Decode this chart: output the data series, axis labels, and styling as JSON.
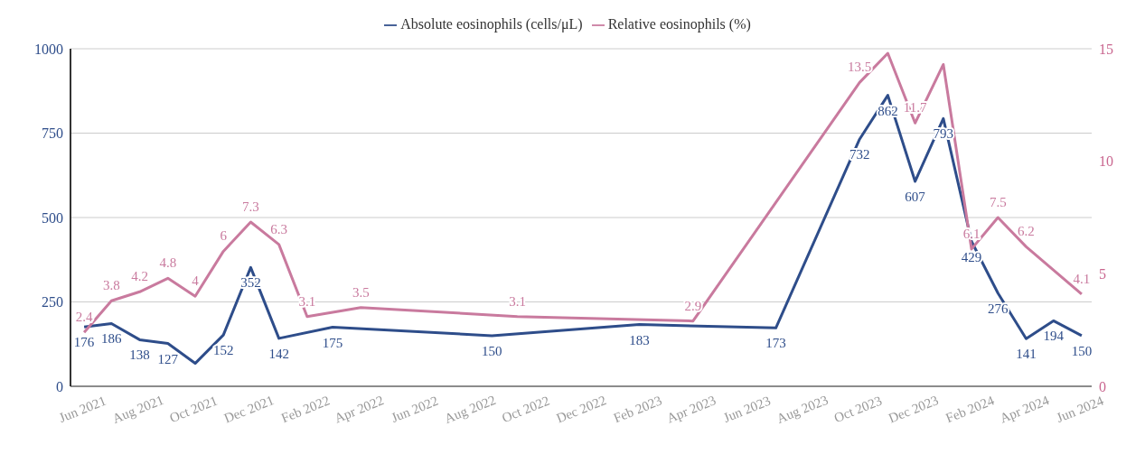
{
  "chart_data": {
    "type": "line",
    "xlim": [
      "2021-05-17",
      "2024-06-12"
    ],
    "xticks": [
      {
        "value": "2021-06",
        "label": "Jun 2021"
      },
      {
        "value": "2021-08",
        "label": "Aug 2021"
      },
      {
        "value": "2021-10",
        "label": "Oct 2021"
      },
      {
        "value": "2021-12",
        "label": "Dec 2021"
      },
      {
        "value": "2022-02",
        "label": "Feb 2022"
      },
      {
        "value": "2022-04",
        "label": "Apr 2022"
      },
      {
        "value": "2022-06",
        "label": "Jun 2022"
      },
      {
        "value": "2022-08",
        "label": "Aug 2022"
      },
      {
        "value": "2022-10",
        "label": "Oct 2022"
      },
      {
        "value": "2022-12",
        "label": "Dec 2022"
      },
      {
        "value": "2023-02",
        "label": "Feb 2023"
      },
      {
        "value": "2023-04",
        "label": "Apr 2023"
      },
      {
        "value": "2023-06",
        "label": "Jun 2023"
      },
      {
        "value": "2023-08",
        "label": "Aug 2023"
      },
      {
        "value": "2023-10",
        "label": "Oct 2023"
      },
      {
        "value": "2023-12",
        "label": "Dec 2023"
      },
      {
        "value": "2024-02",
        "label": "Feb 2024"
      },
      {
        "value": "2024-04",
        "label": "Apr 2024"
      },
      {
        "value": "2024-06",
        "label": "Jun 2024"
      }
    ],
    "ylim": [
      0,
      1000
    ],
    "yticks": [
      0,
      250,
      500,
      750,
      1000
    ],
    "y2lim": [
      0,
      15
    ],
    "y2ticks": [
      0,
      5,
      10,
      15
    ],
    "grid": "y",
    "legend": "top",
    "marker": "none",
    "line_style": "solid",
    "series": [
      {
        "name": "Absolute eosinophils (cells/μL)",
        "color": "#2e4d8a",
        "axis": "y",
        "x": [
          "2021-06",
          "2021-07",
          "2021-08",
          "2021-09",
          "2021-10",
          "2021-11",
          "2021-12",
          "2022-01",
          "2022-03",
          "2022-08-23",
          "2023-02",
          "2023-07",
          "2023-10",
          "2023-11",
          "2023-12",
          "2024-01",
          "2024-02",
          "2024-03",
          "2024-04",
          "2024-05",
          "2024-06"
        ],
        "values": [
          176,
          186,
          138,
          127,
          68,
          152,
          352,
          142,
          175,
          150,
          183,
          173,
          732,
          862,
          607,
          793,
          429,
          276,
          141,
          194,
          150
        ],
        "value_labels": [
          "176",
          "186",
          "138",
          "127",
          null,
          "152",
          "352",
          "142",
          "175",
          "150",
          "183",
          "173",
          "732",
          "862",
          "607",
          "793",
          "429",
          "276",
          "141",
          "194",
          "150"
        ]
      },
      {
        "name": "Relative eosinophils (%)",
        "color": "#c97a9e",
        "axis": "y2",
        "x": [
          "2021-06",
          "2021-07",
          "2021-08",
          "2021-09",
          "2021-10",
          "2021-11",
          "2021-12",
          "2022-01",
          "2022-02",
          "2022-04",
          "2022-09-20",
          "2023-04",
          "2023-10",
          "2023-11",
          "2023-12",
          "2024-01",
          "2024-02",
          "2024-03",
          "2024-04",
          "2024-06"
        ],
        "values": [
          2.4,
          3.8,
          4.2,
          4.8,
          4,
          6,
          7.3,
          6.3,
          3.1,
          3.5,
          3.1,
          2.9,
          13.5,
          14.8,
          11.7,
          14.3,
          6.1,
          7.5,
          6.2,
          4.1
        ],
        "value_labels": [
          "2.4",
          "3.8",
          "4.2",
          "4.8",
          "4",
          "6",
          "7.3",
          "6.3",
          "3.1",
          "3.5",
          "3.1",
          "2.9",
          "13.5",
          null,
          "11.7",
          null,
          "6.1",
          "7.5",
          "6.2",
          "4.1"
        ]
      }
    ]
  }
}
